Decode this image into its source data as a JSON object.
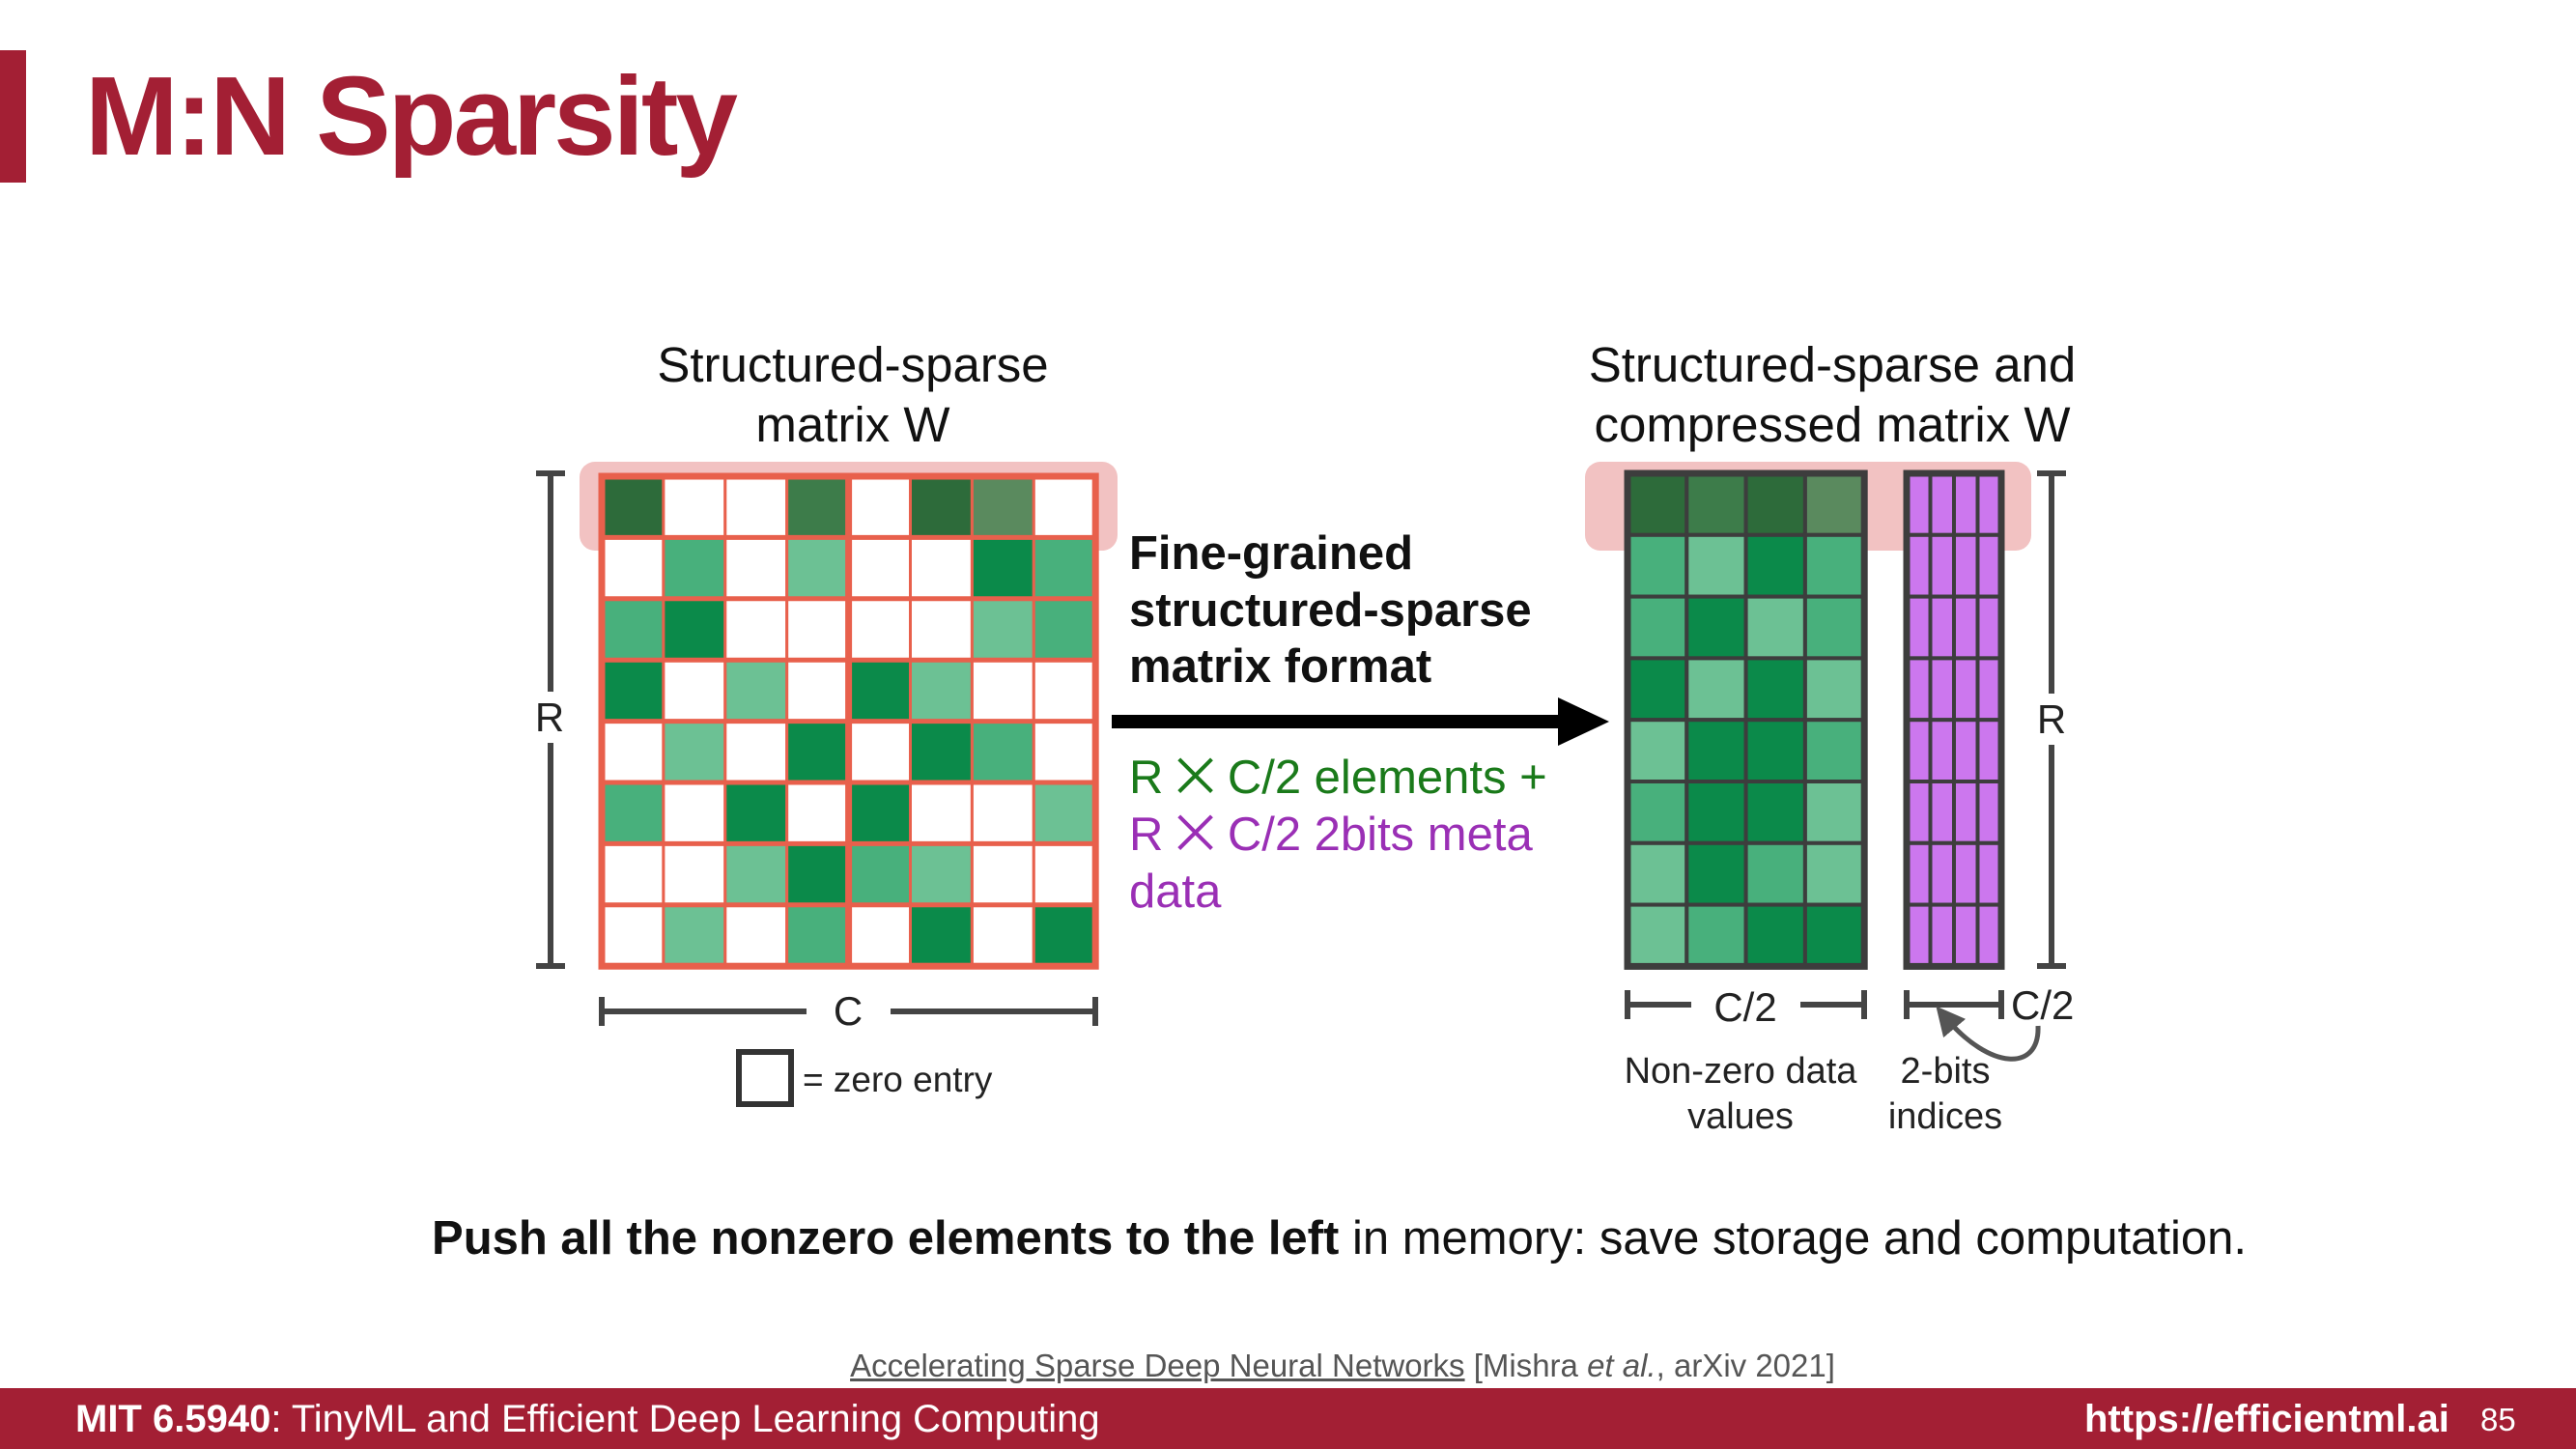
{
  "slide": {
    "title": "M:N Sparsity",
    "summary_bold": "Push all the nonzero elements to the left",
    "summary_rest": " in memory: save storage and computation.",
    "citation_link": "Accelerating Sparse Deep Neural Networks",
    "citation_pre": " [Mishra ",
    "citation_etal": "et al.",
    "citation_post": ", arXiv 2021]"
  },
  "footer": {
    "course_code": "MIT 6.5940",
    "course_name": ": TinyML and Efficient Deep Learning Computing",
    "url": "https://efficientml.ai",
    "page_number": "85"
  },
  "diagram": {
    "left_title": [
      "Structured-sparse",
      "matrix W"
    ],
    "right_title": [
      "Structured-sparse and",
      "compressed matrix W"
    ],
    "arrow_label": [
      "Fine-grained",
      "structured-sparse",
      "matrix format"
    ],
    "green_text": "R ⨉ C/2 elements +",
    "purple_text": [
      "R ⨉ C/2 2bits meta",
      "data"
    ],
    "label_r": "R",
    "label_c": "C",
    "label_c_half": "C/2",
    "legend_text": "= zero entry",
    "nonzero_caption": [
      "Non-zero data",
      "values"
    ],
    "indices_caption": [
      "2-bits",
      "indices"
    ],
    "colors": {
      "accent": "#a31f34",
      "grid_line": "#e8604c",
      "highlight": "#f2c2c2",
      "dark_border": "#3d3d3d",
      "meta_purple": "#cc77ee",
      "green_text": "#1a7a1a",
      "purple_text": "#9a2fb5"
    },
    "sparse_matrix": [
      [
        5,
        0,
        0,
        6,
        0,
        5,
        7,
        0
      ],
      [
        0,
        2,
        0,
        3,
        0,
        0,
        1,
        2
      ],
      [
        2,
        1,
        0,
        0,
        0,
        0,
        3,
        2
      ],
      [
        1,
        0,
        3,
        0,
        1,
        3,
        0,
        0
      ],
      [
        0,
        3,
        0,
        1,
        0,
        1,
        2,
        0
      ],
      [
        2,
        0,
        1,
        0,
        1,
        0,
        0,
        3
      ],
      [
        0,
        0,
        3,
        1,
        2,
        3,
        0,
        0
      ],
      [
        0,
        3,
        0,
        2,
        0,
        1,
        0,
        1
      ]
    ],
    "compressed_matrix": [
      [
        5,
        6,
        5,
        7
      ],
      [
        2,
        3,
        1,
        2
      ],
      [
        2,
        1,
        3,
        2
      ],
      [
        1,
        3,
        1,
        3
      ],
      [
        3,
        1,
        1,
        2
      ],
      [
        2,
        1,
        1,
        3
      ],
      [
        3,
        1,
        2,
        3
      ],
      [
        3,
        2,
        1,
        1
      ]
    ]
  }
}
